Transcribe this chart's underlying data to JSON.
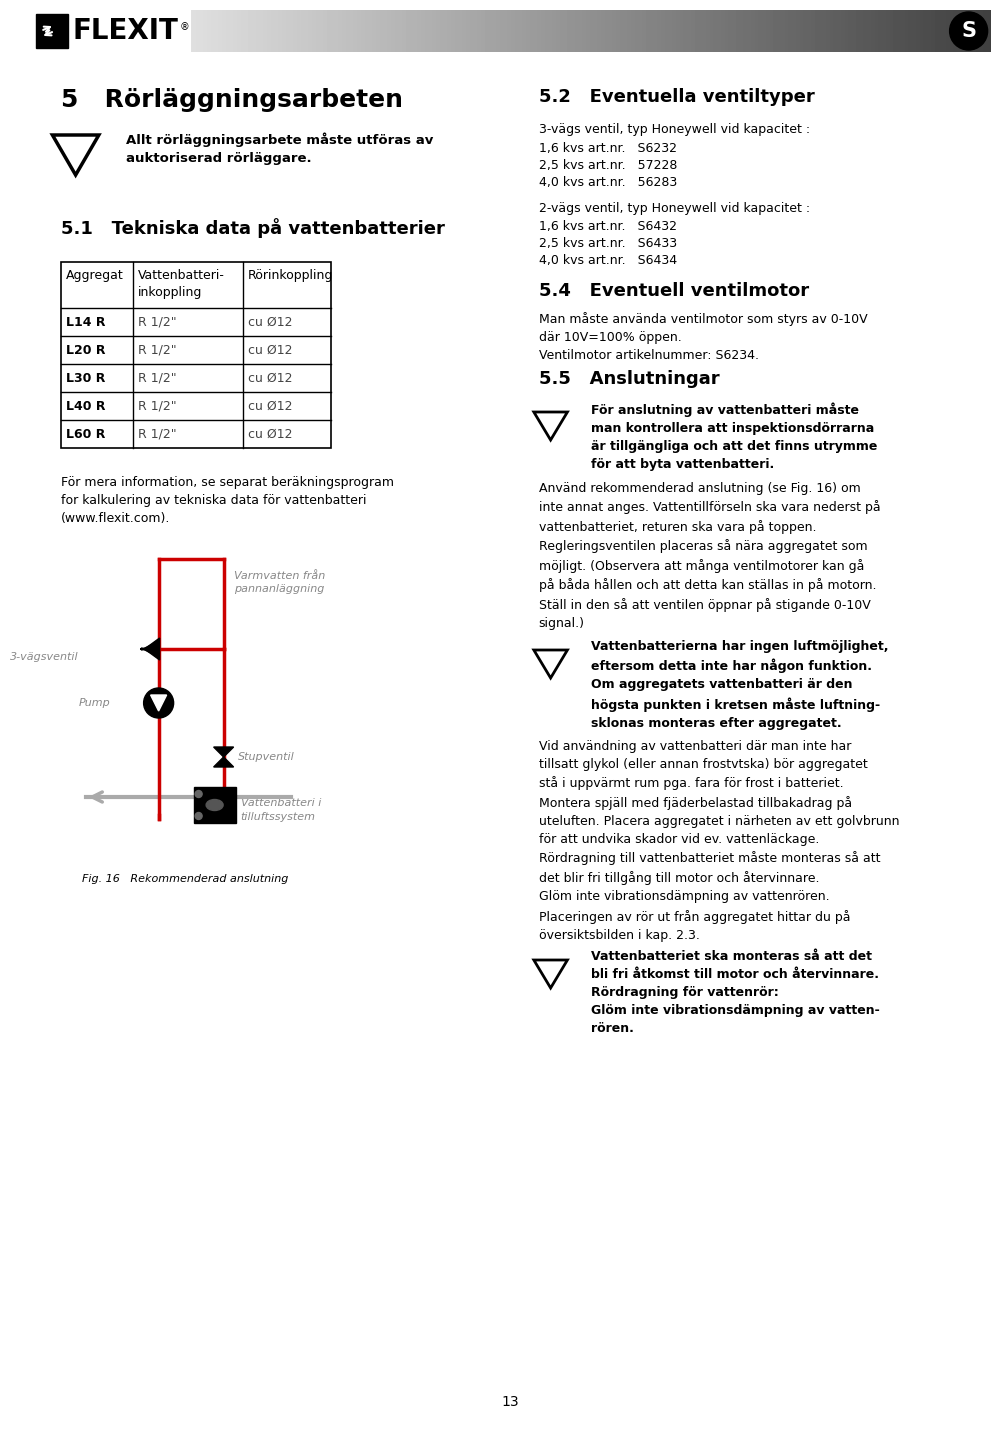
{
  "bg_color": "#ffffff",
  "flexit_text": "FLEXIT",
  "section5_title": "5   Rörläggningsarbeten",
  "warning1_text": "Allt rörläggningsarbete måste utföras av\nauktoriserad rörläggare.",
  "section51_title": "5.1   Tekniska data på vattenbatterier",
  "table_headers": [
    "Aggregat",
    "Vattenbatteri-\ninkoppling",
    "Rörinkoppling"
  ],
  "table_rows": [
    [
      "L14 R",
      "R 1/2\"",
      "cu Ø12"
    ],
    [
      "L20 R",
      "R 1/2\"",
      "cu Ø12"
    ],
    [
      "L30 R",
      "R 1/2\"",
      "cu Ø12"
    ],
    [
      "L40 R",
      "R 1/2\"",
      "cu Ø12"
    ],
    [
      "L60 R",
      "R 1/2\"",
      "cu Ø12"
    ]
  ],
  "para_text": "För mera information, se separat beräkningsprogram\nfor kalkulering av tekniska data för vattenbatteri\n(www.flexit.com).",
  "fig_caption": "Fig. 16   Rekommenderad anslutning",
  "diagram_label_warmwater": "Varmvatten från\npannanläggning",
  "diagram_label_3way": "3-vägsventil",
  "diagram_label_pump": "Pump",
  "diagram_label_stop": "Stupventil",
  "diagram_label_battery": "Vattenbatteri i\ntilluftssystem",
  "section52_title": "5.2   Eventuella ventiltyper",
  "section52_text1": "3-vägs ventil, typ Honeywell vid kapacitet :",
  "section52_items1": [
    "1,6 kvs art.nr.   S6232",
    "2,5 kvs art.nr.   57228",
    "4,0 kvs art.nr.   56283"
  ],
  "section52_text2": "2-vägs ventil, typ Honeywell vid kapacitet :",
  "section52_items2": [
    "1,6 kvs art.nr.   S6432",
    "2,5 kvs art.nr.   S6433",
    "4,0 kvs art.nr.   S6434"
  ],
  "section54_title": "5.4   Eventuell ventilmotor",
  "section54_text": "Man måste använda ventilmotor som styrs av 0-10V\ndär 10V=100% öppen.\nVentilmotor artikelnummer: S6234.",
  "section55_title": "5.5   Anslutningar",
  "warning_55_text": "För anslutning av vattenbatteri måste\nman kontrollera att inspektionsdörrarna\när tillgängliga och att det finns utrymme\nför att byta vattenbatteri.",
  "section55_para1": "Använd rekommenderad anslutning (se Fig. 16) om\ninte annat anges. Vattentillförseln ska vara nederst på\nvattenbatteriet, returen ska vara på toppen.\nRegleringsventilen placeras så nära aggregatet som\nmöjligt. (Observera att många ventilmotorer kan gå\npå båda hållen och att detta kan ställas in på motorn.\nStäll in den så att ventilen öppnar på stigande 0-10V\nsignal.)",
  "warning_55b_text": "Vattenbatterierna har ingen luftmöjlighet,\neftersom detta inte har någon funktion.\nOm aggregatets vattenbatteri är den\nhögsta punkten i kretsen måste luftning-\nsklonas monteras efter aggregatet.",
  "section55_para2": "Vid användning av vattenbatteri där man inte har\ntillsatt glykol (eller annan frostvtska) bör aggregatet\nstå i uppvärmt rum pga. fara för frost i batteriet.\nMontera spjäll med fjäderbelastad tillbakadrag på\nuteluften. Placera aggregatet i närheten av ett golvbrunn\nför att undvika skador vid ev. vattenläckage.\nRördragning till vattenbatteriet måste monteras så att\ndet blir fri tillgång till motor och återvinnare.\nGlöm inte vibrationsdämpning av vattenrören.",
  "section55_para3": "Placeringen av rör ut från aggregatet hittar du på\növersiktsbilden i kap. 2.3.",
  "warning_55c_text": "Vattenbatteriet ska monteras så att det\nbli fri åtkomst till motor och återvinnare.\nRördragning för vattenrör:\nGlöm inte vibrationsdämpning av vatten-\nrören.",
  "page_number": "13",
  "red_color": "#cc0000",
  "gray_color": "#aaaaaa"
}
